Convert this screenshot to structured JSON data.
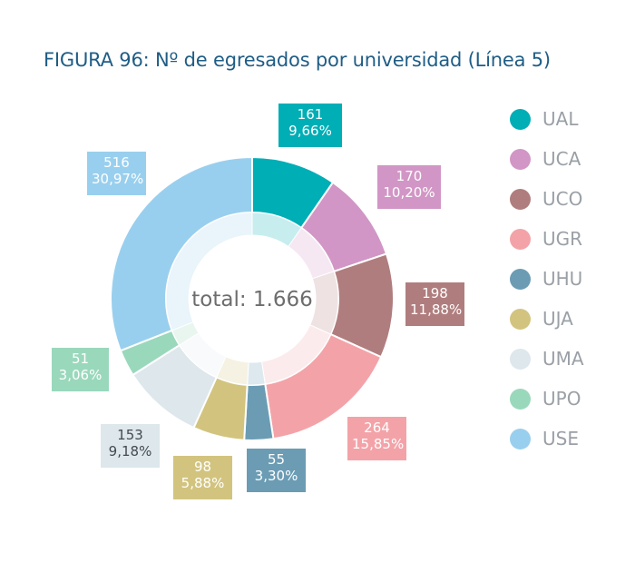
{
  "chart_data": {
    "type": "pie",
    "title": "FIGURA 96: Nº de egresados por universidad (Línea 5)",
    "center_label": "total: 1.666",
    "legend_position": "right",
    "slices": [
      {
        "name": "UAL",
        "value": 161,
        "percent_label": "9,66%",
        "color": "#00aeb6"
      },
      {
        "name": "UCA",
        "value": 170,
        "percent_label": "10,20%",
        "color": "#d196c5"
      },
      {
        "name": "UCO",
        "value": 198,
        "percent_label": "11,88%",
        "color": "#b07d7e"
      },
      {
        "name": "UGR",
        "value": 264,
        "percent_label": "15,85%",
        "color": "#f3a3a8"
      },
      {
        "name": "UHU",
        "value": 55,
        "percent_label": "3,30%",
        "color": "#6b9cb4"
      },
      {
        "name": "UJA",
        "value": 98,
        "percent_label": "5,88%",
        "color": "#d2c47e"
      },
      {
        "name": "UMA",
        "value": 153,
        "percent_label": "9,18%",
        "color": "#dde7ec"
      },
      {
        "name": "UPO",
        "value": 51,
        "percent_label": "3,06%",
        "color": "#9ad8bc"
      },
      {
        "name": "USE",
        "value": 516,
        "percent_label": "30,97%",
        "color": "#99cfee"
      }
    ]
  }
}
